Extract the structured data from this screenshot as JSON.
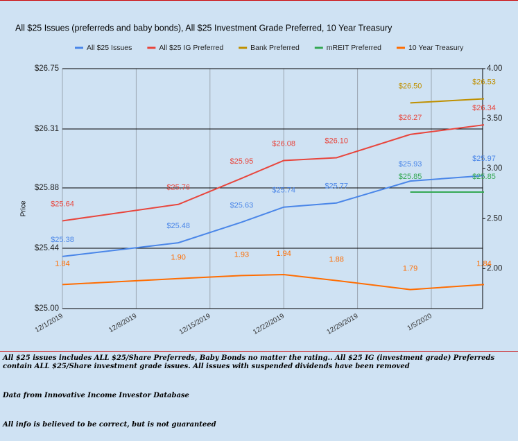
{
  "chart_data": {
    "type": "line",
    "title": "All $25 Issues (preferreds and baby bonds), All $25 Investment Grade Preferred, 10 Year Treasury",
    "y_label": "Price",
    "x": [
      "12/1/2019",
      "12/12/2019",
      "12/18/2019",
      "12/22/2019",
      "12/27/2019",
      "1/3/2020",
      "1/10/2020"
    ],
    "xticks": [
      "12/1/2019",
      "12/8/2019",
      "12/15/2019",
      "12/22/2019",
      "12/29/2019",
      "1/5/2020"
    ],
    "ylim": [
      25,
      26.75
    ],
    "yticks": [
      {
        "value": 25,
        "label": "$25.00"
      },
      {
        "value": 25.44,
        "label": "$25.44"
      },
      {
        "value": 25.88,
        "label": "$25.88"
      },
      {
        "value": 26.31,
        "label": "$26.31"
      },
      {
        "value": 26.75,
        "label": "$26.75"
      }
    ],
    "y2lim": [
      1.6,
      4
    ],
    "y2ticks": [
      {
        "value": 2,
        "label": "2.00"
      },
      {
        "value": 2.5,
        "label": "2.50"
      },
      {
        "value": 3,
        "label": "3.00"
      },
      {
        "value": 3.5,
        "label": "3.50"
      },
      {
        "value": 4,
        "label": "4.00"
      }
    ],
    "grid": true,
    "legend": "top",
    "series": [
      {
        "name": "All $25 Issues",
        "color": "#4a86e8",
        "values": [
          25.38,
          25.48,
          25.63,
          25.74,
          25.77,
          25.93,
          25.97
        ],
        "value_labels": [
          "$25.38",
          "$25.48",
          "$25.63",
          "$25.74",
          "$25.77",
          "$25.93",
          "$25.97"
        ]
      },
      {
        "name": "All $25 IG Preferred",
        "color": "#e8453c",
        "values": [
          25.64,
          25.76,
          25.95,
          26.08,
          26.1,
          26.27,
          26.34
        ],
        "value_labels": [
          "$25.64",
          "$25.76",
          "$25.95",
          "$26.08",
          "$26.10",
          "$26.27",
          "$26.34"
        ]
      },
      {
        "name": "Bank Preferred",
        "color": "#bf9000",
        "values": [
          null,
          null,
          null,
          null,
          null,
          26.5,
          26.53
        ],
        "value_labels": [
          null,
          null,
          null,
          null,
          null,
          "$26.50",
          "$26.53"
        ]
      },
      {
        "name": "mREIT Preferred",
        "color": "#34a853",
        "values": [
          null,
          null,
          null,
          null,
          null,
          25.85,
          25.85
        ],
        "value_labels": [
          null,
          null,
          null,
          null,
          null,
          "$25.85",
          "$25.85"
        ]
      },
      {
        "name": "10 Year Treasury",
        "color": "#ff6d01",
        "axis": "y2",
        "values": [
          1.84,
          1.9,
          1.93,
          1.94,
          1.88,
          1.79,
          1.84
        ],
        "value_labels": [
          "1.84",
          "1.90",
          "1.93",
          "1.94",
          "1.88",
          "1.79",
          "1.84"
        ]
      }
    ]
  },
  "notes": [
    "All $25 issues includes ALL $25/Share Preferreds, Baby Bonds no matter the rating..  All $25 IG (investment grade) Preferreds contain ALL $25/Share investment grade issues.  All issues with suspended dividends have been removed",
    "Data from Innovative Income Investor Database",
    "All info is believed to be correct, but is not guaranteed"
  ]
}
